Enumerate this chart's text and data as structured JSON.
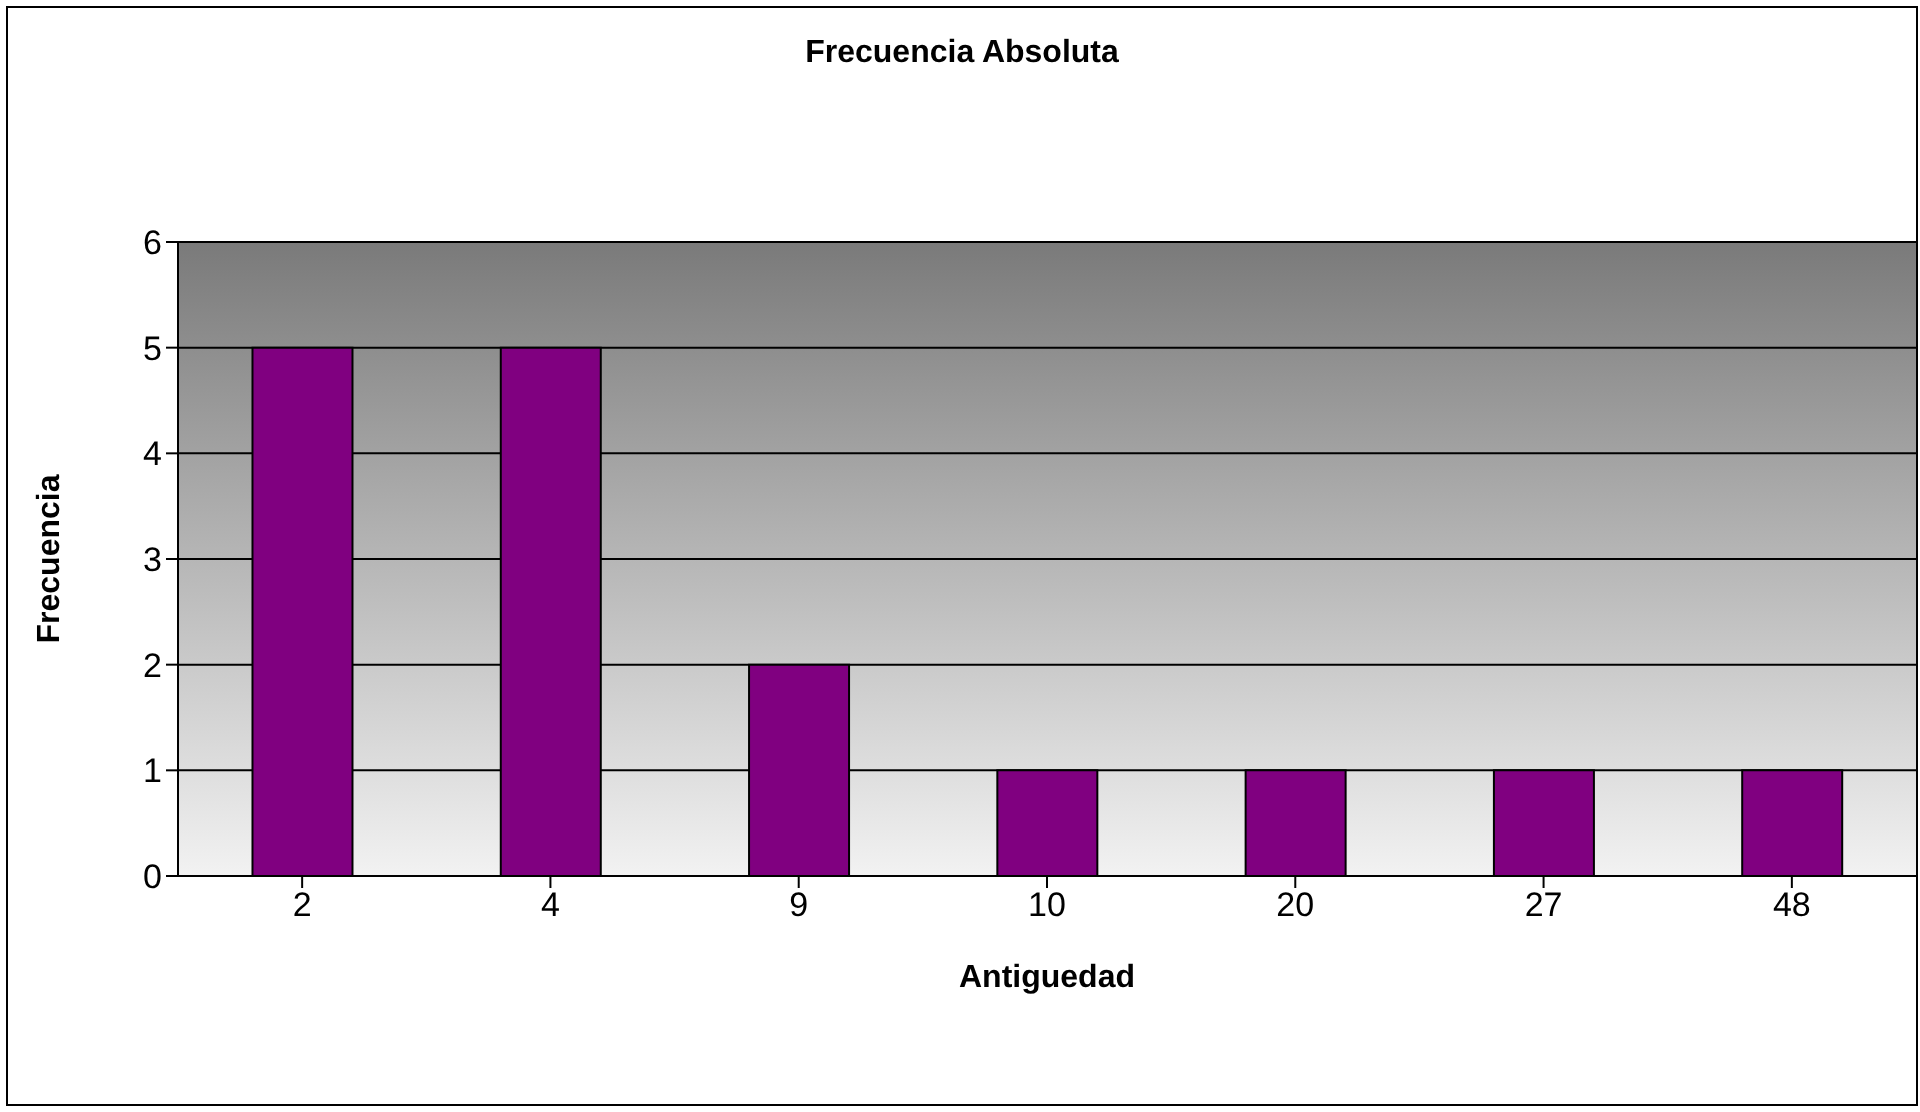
{
  "chart_data": {
    "type": "bar",
    "title": "Frecuencia Absoluta",
    "xlabel": "Antiguedad",
    "ylabel": "Frecuencia",
    "categories": [
      "2",
      "4",
      "9",
      "10",
      "20",
      "27",
      "48"
    ],
    "values": [
      5,
      5,
      2,
      1,
      1,
      1,
      1
    ],
    "color": "#800080",
    "ylim": [
      0,
      6
    ],
    "yticks": [
      0,
      1,
      2,
      3,
      4,
      5,
      6
    ],
    "grid": "y"
  }
}
